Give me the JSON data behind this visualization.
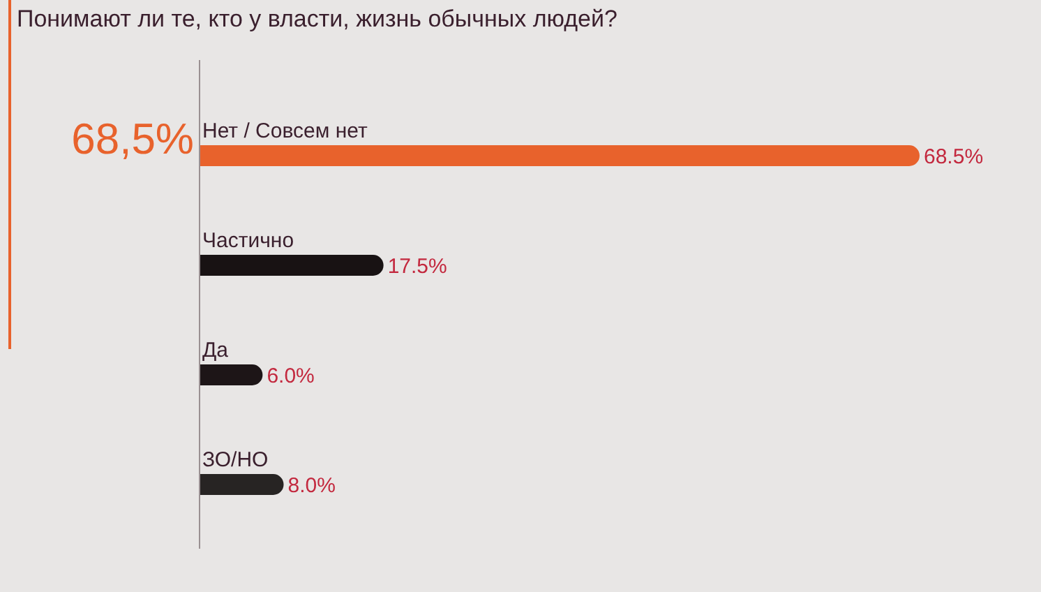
{
  "chart_data": {
    "type": "bar",
    "orientation": "horizontal",
    "title": "Понимают ли те, кто у власти, жизнь обычных людей?",
    "categories": [
      "Нет / Совсем нет",
      "Частично",
      "Да",
      "ЗО/НО"
    ],
    "values": [
      68.5,
      17.5,
      6.0,
      8.0
    ],
    "colors": [
      "#e8622c",
      "#181213",
      "#1d1517",
      "#272423"
    ],
    "value_labels": [
      "68.5%",
      "17.5%",
      "6.0%",
      "8.0%"
    ],
    "annotations": [
      "68,5%"
    ]
  }
}
